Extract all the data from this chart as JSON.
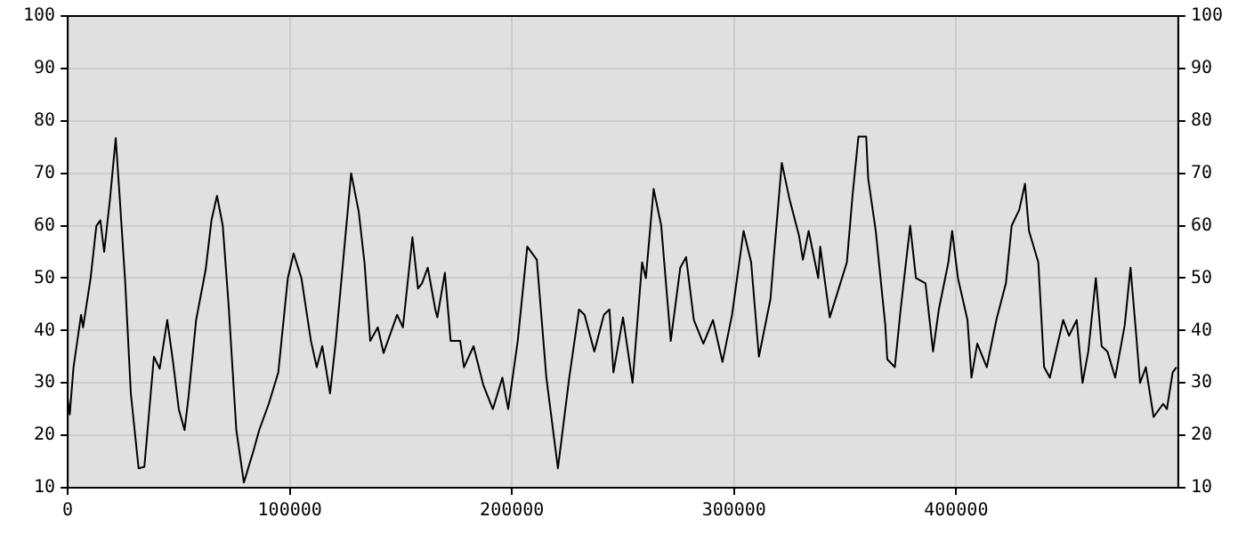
{
  "chart_data": {
    "type": "line",
    "x": [
      0,
      900,
      2600,
      6000,
      6900,
      10300,
      12900,
      14700,
      16400,
      19000,
      21600,
      23300,
      25900,
      28400,
      31900,
      34500,
      38800,
      41400,
      44800,
      47400,
      50000,
      52600,
      54300,
      57800,
      62100,
      64700,
      67200,
      69800,
      72400,
      75900,
      79300,
      83600,
      86200,
      90500,
      94800,
      99100,
      101700,
      105200,
      109500,
      112100,
      114600,
      118100,
      120700,
      123300,
      127600,
      131000,
      133600,
      136200,
      139600,
      142200,
      148300,
      150900,
      155200,
      157700,
      159500,
      162100,
      165500,
      166400,
      169800,
      172400,
      176700,
      178400,
      182700,
      187100,
      191400,
      195700,
      198300,
      202600,
      206900,
      211200,
      215500,
      220700,
      225800,
      230200,
      232700,
      237100,
      241400,
      243900,
      245700,
      250000,
      254300,
      258600,
      260300,
      263800,
      267200,
      271500,
      275800,
      278400,
      281900,
      286200,
      290500,
      294800,
      299100,
      304300,
      307700,
      311200,
      316400,
      318100,
      321500,
      325000,
      329300,
      331000,
      333600,
      337900,
      338800,
      343100,
      350800,
      353400,
      356000,
      359500,
      360400,
      363800,
      368100,
      369000,
      372400,
      375000,
      379300,
      381900,
      386200,
      389600,
      392200,
      396500,
      398200,
      400800,
      405100,
      406900,
      409500,
      413800,
      418100,
      422400,
      425000,
      428400,
      431000,
      432800,
      437000,
      439600,
      442200,
      448200,
      450800,
      454300,
      456900,
      459500,
      462900,
      465500,
      468100,
      471600,
      475900,
      478500,
      481100,
      482800,
      485400,
      488900,
      493200,
      494900,
      497500,
      499200
    ],
    "series": [
      {
        "color": "#000000",
        "values": [
          27,
          24,
          33,
          43,
          40.6,
          50,
          60,
          61,
          55,
          65,
          76.7,
          66,
          49,
          28,
          13.7,
          14,
          35,
          32.7,
          42,
          34,
          25,
          21,
          27,
          42,
          51.6,
          61,
          65.7,
          60,
          45,
          21,
          11,
          17,
          21,
          26,
          32,
          50,
          54.7,
          50,
          38,
          33,
          37,
          28,
          38,
          50,
          70,
          62.7,
          53,
          38,
          40.6,
          35.7,
          43,
          40.6,
          57.8,
          48,
          49,
          52,
          44,
          42.5,
          51,
          38,
          38,
          33,
          37,
          29.6,
          25,
          31,
          25,
          38,
          56,
          53.5,
          31,
          13.7,
          31,
          44,
          43,
          36,
          43,
          44,
          32,
          42.5,
          30,
          53,
          50,
          67,
          60,
          38,
          52,
          54,
          42,
          37.5,
          42,
          34,
          43,
          59,
          53,
          35,
          46,
          55,
          72,
          65,
          58,
          53.5,
          59,
          50,
          56,
          42.5,
          53,
          66,
          77,
          77,
          69,
          59,
          41,
          34.5,
          33,
          44,
          60,
          50,
          49,
          36,
          44,
          53,
          59,
          50,
          42,
          31,
          37.5,
          33,
          42,
          49,
          60,
          63,
          68,
          59,
          53,
          33,
          31,
          42,
          39,
          42,
          30,
          36,
          50,
          37,
          36,
          31,
          41,
          52,
          39,
          30,
          33,
          23.5,
          26,
          25,
          32,
          33
        ]
      }
    ],
    "xlim": [
      0,
      500000
    ],
    "xticks": [
      0,
      100000,
      200000,
      300000,
      400000
    ],
    "ylim": [
      10,
      100
    ],
    "yticks": [
      10,
      20,
      30,
      40,
      50,
      60,
      70,
      80,
      90,
      100
    ],
    "y2lim": [
      10,
      100
    ],
    "y2ticks": [
      10,
      20,
      30,
      40,
      50,
      60,
      70,
      80,
      90,
      100
    ],
    "grid": true,
    "legend": false,
    "marker": "none",
    "line_style": "solid"
  }
}
